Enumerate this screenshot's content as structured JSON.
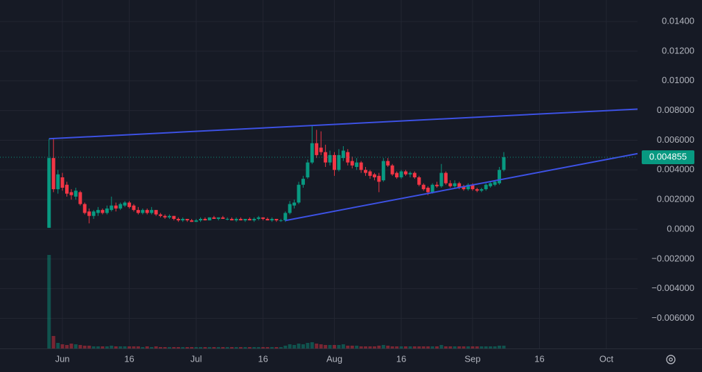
{
  "chart_data": {
    "type": "candlestick",
    "x": [
      "May 29",
      "May 30",
      "May 31",
      "Jun 1",
      "Jun 2",
      "Jun 3",
      "Jun 4",
      "Jun 5",
      "Jun 6",
      "Jun 7",
      "Jun 8",
      "Jun 9",
      "Jun 10",
      "Jun 11",
      "Jun 12",
      "Jun 13",
      "Jun 14",
      "Jun 15",
      "Jun 16",
      "Jun 17",
      "Jun 18",
      "Jun 19",
      "Jun 20",
      "Jun 21",
      "Jun 22",
      "Jun 23",
      "Jun 24",
      "Jun 25",
      "Jun 26",
      "Jun 27",
      "Jun 28",
      "Jun 29",
      "Jun 30",
      "Jul 1",
      "Jul 2",
      "Jul 3",
      "Jul 4",
      "Jul 5",
      "Jul 6",
      "Jul 7",
      "Jul 8",
      "Jul 9",
      "Jul 10",
      "Jul 11",
      "Jul 12",
      "Jul 13",
      "Jul 14",
      "Jul 15",
      "Jul 16",
      "Jul 17",
      "Jul 18",
      "Jul 19",
      "Jul 20",
      "Jul 21",
      "Jul 22",
      "Jul 23",
      "Jul 24",
      "Jul 25",
      "Jul 26",
      "Jul 27",
      "Jul 28",
      "Jul 29",
      "Jul 30",
      "Jul 31",
      "Aug 1",
      "Aug 2",
      "Aug 3",
      "Aug 4",
      "Aug 5",
      "Aug 6",
      "Aug 7",
      "Aug 8",
      "Aug 9",
      "Aug 10",
      "Aug 11",
      "Aug 12",
      "Aug 13",
      "Aug 14",
      "Aug 15",
      "Aug 16",
      "Aug 17",
      "Aug 18",
      "Aug 19",
      "Aug 20",
      "Aug 21",
      "Aug 22",
      "Aug 23",
      "Aug 24",
      "Aug 25",
      "Aug 26",
      "Aug 27",
      "Aug 28",
      "Aug 29",
      "Aug 30",
      "Aug 31",
      "Sep 1",
      "Sep 2",
      "Sep 3",
      "Sep 4",
      "Sep 5",
      "Sep 6",
      "Sep 7",
      "Sep 8"
    ],
    "ohlc": [
      [
        0.0001,
        0.0061,
        0.0001,
        0.0048
      ],
      [
        0.0048,
        0.0061,
        0.0025,
        0.0027
      ],
      [
        0.0027,
        0.004,
        0.0024,
        0.0037
      ],
      [
        0.0035,
        0.0038,
        0.0026,
        0.0028
      ],
      [
        0.003,
        0.0032,
        0.0022,
        0.0024
      ],
      [
        0.0025,
        0.0027,
        0.002,
        0.0023
      ],
      [
        0.0022,
        0.0028,
        0.002,
        0.0026
      ],
      [
        0.0025,
        0.0026,
        0.0016,
        0.0017
      ],
      [
        0.0017,
        0.0018,
        0.001,
        0.0011
      ],
      [
        0.0012,
        0.0014,
        0.0004,
        0.0009
      ],
      [
        0.0009,
        0.0013,
        0.0007,
        0.0012
      ],
      [
        0.0011,
        0.0015,
        0.0009,
        0.0013
      ],
      [
        0.0013,
        0.0014,
        0.001,
        0.0011
      ],
      [
        0.0011,
        0.0016,
        0.001,
        0.0014
      ],
      [
        0.0013,
        0.0022,
        0.0012,
        0.0016
      ],
      [
        0.0016,
        0.0018,
        0.0012,
        0.0014
      ],
      [
        0.0014,
        0.0018,
        0.0013,
        0.0017
      ],
      [
        0.0016,
        0.0019,
        0.0015,
        0.0018
      ],
      [
        0.0018,
        0.0019,
        0.0014,
        0.0015
      ],
      [
        0.0016,
        0.0017,
        0.0012,
        0.0013
      ],
      [
        0.0013,
        0.0015,
        0.001,
        0.0011
      ],
      [
        0.0011,
        0.0014,
        0.001,
        0.0013
      ],
      [
        0.0013,
        0.0014,
        0.001,
        0.0011
      ],
      [
        0.0011,
        0.0015,
        0.001,
        0.0013
      ],
      [
        0.0013,
        0.0013,
        0.0009,
        0.001
      ],
      [
        0.001,
        0.0011,
        0.0008,
        0.0009
      ],
      [
        0.0009,
        0.001,
        0.0007,
        0.0008
      ],
      [
        0.0008,
        0.001,
        0.0007,
        0.0009
      ],
      [
        0.0009,
        0.0009,
        0.0006,
        0.0007
      ],
      [
        0.0007,
        0.0008,
        0.0005,
        0.0006
      ],
      [
        0.0006,
        0.0008,
        0.0005,
        0.0007
      ],
      [
        0.0007,
        0.0007,
        0.0005,
        0.0006
      ],
      [
        0.0006,
        0.0007,
        0.0005,
        0.0005
      ],
      [
        0.0005,
        0.0007,
        0.0005,
        0.0006
      ],
      [
        0.0006,
        0.0008,
        0.0005,
        0.0007
      ],
      [
        0.0007,
        0.0008,
        0.0006,
        0.0006
      ],
      [
        0.0006,
        0.0008,
        0.0006,
        0.0008
      ],
      [
        0.0008,
        0.0009,
        0.0007,
        0.0007
      ],
      [
        0.0007,
        0.0008,
        0.0006,
        0.0008
      ],
      [
        0.0008,
        0.0009,
        0.0007,
        0.0007
      ],
      [
        0.0007,
        0.0008,
        0.0006,
        0.0007
      ],
      [
        0.0007,
        0.0008,
        0.0006,
        0.0006
      ],
      [
        0.0006,
        0.0008,
        0.0005,
        0.0007
      ],
      [
        0.0007,
        0.0008,
        0.0006,
        0.0006
      ],
      [
        0.0006,
        0.0007,
        0.0005,
        0.0007
      ],
      [
        0.0007,
        0.0008,
        0.0006,
        0.0006
      ],
      [
        0.0006,
        0.0008,
        0.0005,
        0.0007
      ],
      [
        0.0007,
        0.0009,
        0.0006,
        0.0008
      ],
      [
        0.0008,
        0.0008,
        0.0006,
        0.0007
      ],
      [
        0.0007,
        0.0008,
        0.0006,
        0.0006
      ],
      [
        0.0006,
        0.0008,
        0.0005,
        0.0007
      ],
      [
        0.0007,
        0.0007,
        0.0005,
        0.0006
      ],
      [
        0.0006,
        0.0007,
        0.0005,
        0.0006
      ],
      [
        0.0006,
        0.0012,
        0.0005,
        0.0011
      ],
      [
        0.0011,
        0.0019,
        0.001,
        0.0017
      ],
      [
        0.0016,
        0.002,
        0.0014,
        0.0018
      ],
      [
        0.0018,
        0.0032,
        0.0017,
        0.003
      ],
      [
        0.003,
        0.0036,
        0.0028,
        0.0034
      ],
      [
        0.0035,
        0.0047,
        0.0034,
        0.0045
      ],
      [
        0.0045,
        0.007,
        0.0044,
        0.0058
      ],
      [
        0.0058,
        0.0067,
        0.0048,
        0.005
      ],
      [
        0.0055,
        0.0066,
        0.005,
        0.0052
      ],
      [
        0.0052,
        0.0057,
        0.0042,
        0.0045
      ],
      [
        0.0045,
        0.0053,
        0.0043,
        0.005
      ],
      [
        0.005,
        0.0052,
        0.0036,
        0.004
      ],
      [
        0.004,
        0.0054,
        0.0039,
        0.005
      ],
      [
        0.0048,
        0.0056,
        0.0046,
        0.0053
      ],
      [
        0.0052,
        0.0054,
        0.0043,
        0.0045
      ],
      [
        0.0046,
        0.0049,
        0.0041,
        0.0043
      ],
      [
        0.0042,
        0.0048,
        0.004,
        0.0045
      ],
      [
        0.0045,
        0.0046,
        0.0038,
        0.004
      ],
      [
        0.004,
        0.0042,
        0.0036,
        0.0038
      ],
      [
        0.0039,
        0.004,
        0.0034,
        0.0036
      ],
      [
        0.0037,
        0.0038,
        0.0033,
        0.0035
      ],
      [
        0.0036,
        0.0038,
        0.0025,
        0.0032
      ],
      [
        0.0033,
        0.0048,
        0.0032,
        0.0046
      ],
      [
        0.0046,
        0.0048,
        0.0042,
        0.0043
      ],
      [
        0.0043,
        0.0044,
        0.0036,
        0.0037
      ],
      [
        0.0038,
        0.0039,
        0.0034,
        0.0035
      ],
      [
        0.0035,
        0.004,
        0.0034,
        0.0039
      ],
      [
        0.0039,
        0.004,
        0.0036,
        0.0037
      ],
      [
        0.0037,
        0.0039,
        0.0035,
        0.0038
      ],
      [
        0.0038,
        0.0039,
        0.0034,
        0.0035
      ],
      [
        0.0035,
        0.0036,
        0.0029,
        0.003
      ],
      [
        0.003,
        0.0031,
        0.0026,
        0.0027
      ],
      [
        0.0028,
        0.0029,
        0.0023,
        0.0025
      ],
      [
        0.0025,
        0.0031,
        0.0024,
        0.003
      ],
      [
        0.003,
        0.0032,
        0.0028,
        0.0029
      ],
      [
        0.0029,
        0.0044,
        0.0028,
        0.0038
      ],
      [
        0.0038,
        0.0039,
        0.003,
        0.0031
      ],
      [
        0.0031,
        0.0033,
        0.0028,
        0.0029
      ],
      [
        0.0029,
        0.0033,
        0.0028,
        0.0031
      ],
      [
        0.0031,
        0.0032,
        0.0027,
        0.0028
      ],
      [
        0.0029,
        0.003,
        0.0026,
        0.0027
      ],
      [
        0.0027,
        0.0031,
        0.0026,
        0.003
      ],
      [
        0.003,
        0.0031,
        0.0026,
        0.0027
      ],
      [
        0.0027,
        0.0028,
        0.0025,
        0.0026
      ],
      [
        0.0026,
        0.0028,
        0.0025,
        0.0027
      ],
      [
        0.0027,
        0.0031,
        0.0026,
        0.003
      ],
      [
        0.0029,
        0.0032,
        0.0028,
        0.0031
      ],
      [
        0.003,
        0.0033,
        0.0029,
        0.0032
      ],
      [
        0.0031,
        0.0042,
        0.003,
        0.004
      ],
      [
        0.004,
        0.0052,
        0.0039,
        0.004855
      ]
    ],
    "volume": [
      135,
      18,
      8,
      6,
      5,
      7,
      6,
      5,
      4,
      4,
      3,
      3,
      3,
      3,
      4,
      3,
      3,
      3,
      3,
      3,
      3,
      2,
      3,
      2,
      3,
      2,
      2,
      2,
      2,
      2,
      2,
      2,
      2,
      2,
      2,
      2,
      2,
      2,
      2,
      2,
      2,
      2,
      2,
      2,
      2,
      2,
      2,
      2,
      2,
      2,
      2,
      2,
      2,
      4,
      6,
      5,
      7,
      6,
      8,
      9,
      7,
      6,
      5,
      5,
      5,
      5,
      6,
      4,
      4,
      4,
      3,
      3,
      3,
      3,
      4,
      5,
      4,
      3,
      3,
      3,
      3,
      3,
      3,
      3,
      3,
      3,
      3,
      3,
      5,
      3,
      3,
      3,
      3,
      3,
      3,
      3,
      3,
      3,
      3,
      3,
      3,
      4,
      4
    ],
    "up_color": "#089981",
    "down_color": "#f23645",
    "xlim": [
      "May 18",
      "Oct 8"
    ],
    "xticks": [
      {
        "value": "Jun 1",
        "label": "Jun"
      },
      {
        "value": "Jun 16",
        "label": "16"
      },
      {
        "value": "Jul 1",
        "label": "Jul"
      },
      {
        "value": "Jul 16",
        "label": "16"
      },
      {
        "value": "Aug 1",
        "label": "Aug"
      },
      {
        "value": "Aug 16",
        "label": "16"
      },
      {
        "value": "Sep 1",
        "label": "Sep"
      },
      {
        "value": "Sep 16",
        "label": "16"
      },
      {
        "value": "Oct 1",
        "label": "Oct"
      }
    ],
    "ylim": [
      -0.00803,
      0.01545
    ],
    "yticks": [
      {
        "value": 0.014,
        "label": "0.01400"
      },
      {
        "value": 0.012,
        "label": "0.01200"
      },
      {
        "value": 0.01,
        "label": "0.01000"
      },
      {
        "value": 0.008,
        "label": "0.008000"
      },
      {
        "value": 0.006,
        "label": "0.006000"
      },
      {
        "value": 0.004,
        "label": "0.004000"
      },
      {
        "value": 0.002,
        "label": "0.002000"
      },
      {
        "value": 0,
        "label": "0.0000"
      },
      {
        "value": -0.002,
        "label": "−0.002000"
      },
      {
        "value": -0.004,
        "label": "−0.004000"
      },
      {
        "value": -0.006,
        "label": "−0.006000"
      }
    ],
    "last_price": {
      "value": 0.004855,
      "label": "0.004855"
    },
    "trendlines": [
      {
        "color": "#3d52e6",
        "points": [
          [
            "May 29",
            0.0061
          ],
          [
            "Oct 8",
            0.0081
          ]
        ]
      },
      {
        "color": "#3d52e6",
        "points": [
          [
            "Jul 21",
            0.00059
          ],
          [
            "Oct 8",
            0.0051
          ]
        ]
      }
    ],
    "grid": true
  }
}
